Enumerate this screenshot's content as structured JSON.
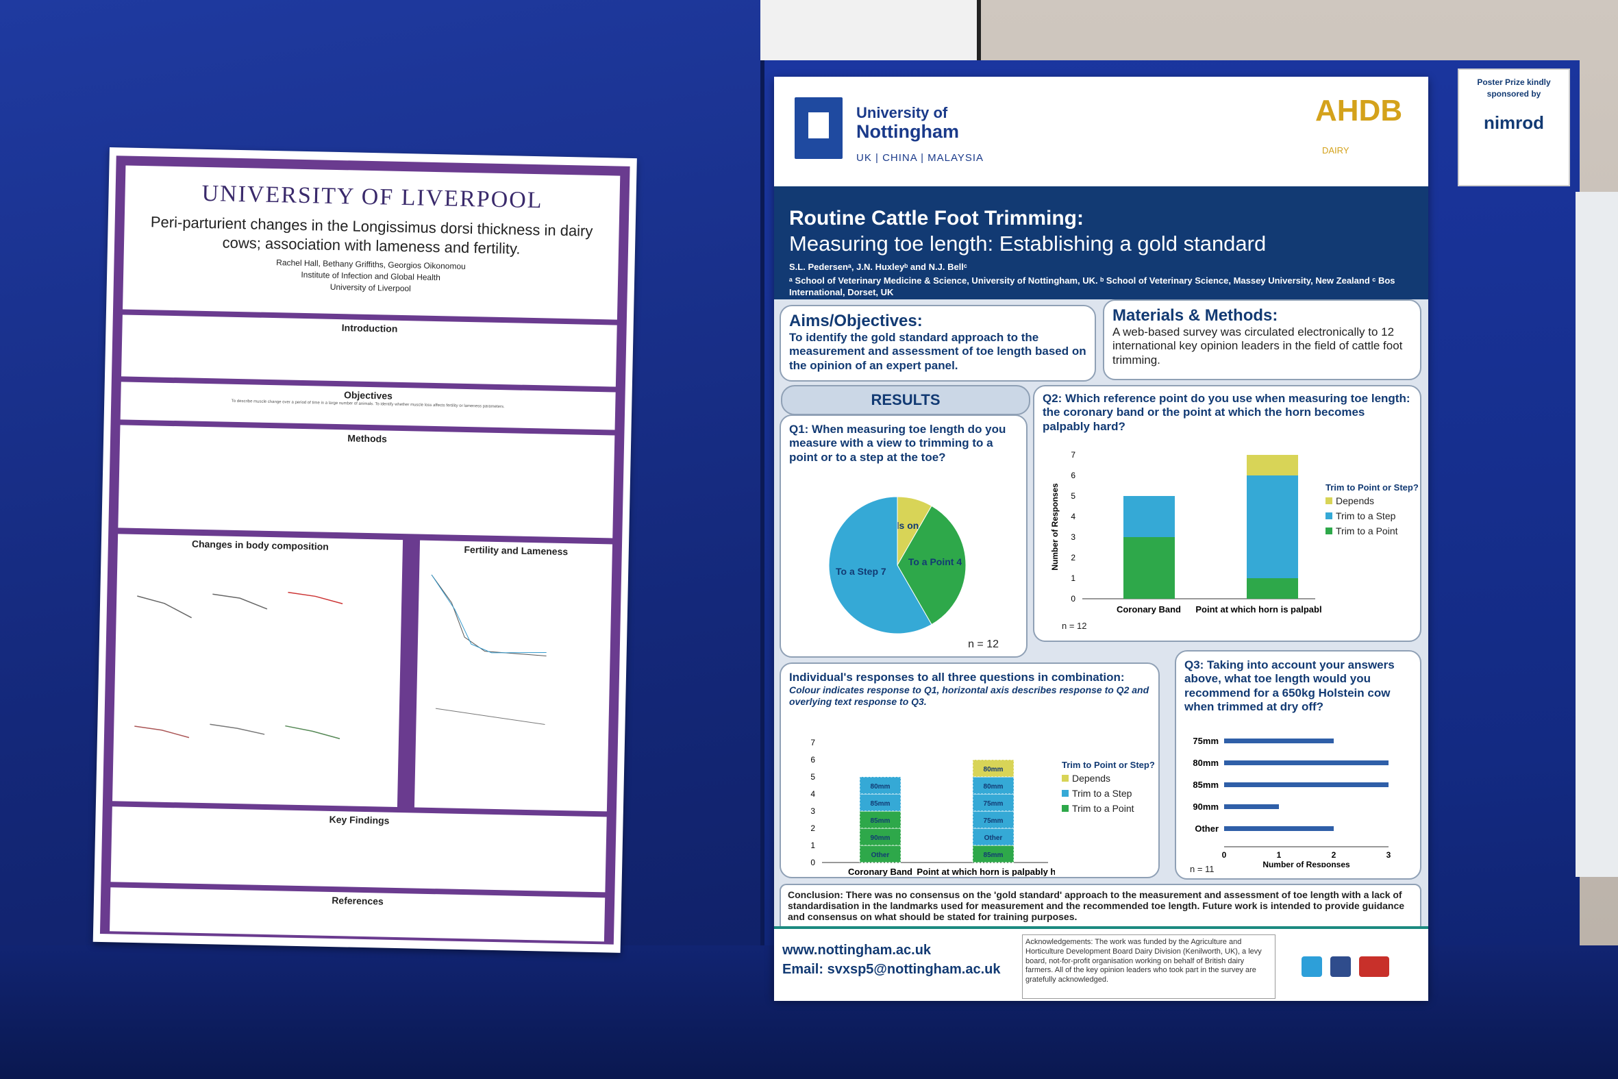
{
  "liverpool": {
    "logo": "UNIVERSITY OF LIVERPOOL",
    "title": "Peri-parturient changes in the Longissimus dorsi thickness in dairy cows; association with lameness and fertility.",
    "authors": "Rachel Hall, Bethany Griffiths, Georgios Oikonomou",
    "institute": "Institute of Infection and Global Health",
    "university": "University of Liverpool",
    "sections": {
      "introduction": "Introduction",
      "objectives": "Objectives",
      "methods": "Methods",
      "body_comp": "Changes in body composition",
      "fertility": "Fertility and Lameness",
      "key_findings": "Key Findings",
      "references": "References"
    },
    "objectives_text": "To describe muscle change over a period of time in a large number of animals. To identify whether muscle loss affects fertility or lameness parameters."
  },
  "nottingham": {
    "uni_name_1": "University of",
    "uni_name_2": "Nottingham",
    "uni_sub": "UK | CHINA | MALAYSIA",
    "ahdb": "AHDB",
    "ahdb_sub": "DAIRY",
    "title_1": "Routine Cattle Foot Trimming:",
    "title_2": "Measuring toe length: Establishing a gold standard",
    "authors": "S.L. Pedersenᵃ, J.N. Huxleyᵇ and N.J. Bellᶜ",
    "affiliations": "ᵃ School of Veterinary Medicine & Science, University of Nottingham, UK. ᵇ School of Veterinary Science, Massey University, New Zealand ᶜ Bos International, Dorset, UK",
    "aims_title": "Aims/Objectives:",
    "aims_text": "To identify the gold standard approach to the measurement and assessment of toe length based on the opinion of an expert panel.",
    "methods_title": "Materials & Methods:",
    "methods_text": "A web-based survey was circulated electronically to 12 international key opinion leaders in the field of cattle foot trimming.",
    "results": "RESULTS",
    "q1": "Q1: When measuring toe length do you measure with a view to trimming to a point or to a step at the toe?",
    "q1_n": "n = 12",
    "q2": "Q2: Which reference point do you use when measuring toe length: the coronary band or the point at which the horn becomes palpably hard?",
    "q2_n": "n = 12",
    "q2_ylabel": "Number of Responses",
    "q2_cat1": "Coronary Band",
    "q2_cat2": "Point at which horn is palpably hard",
    "legend_title": "Trim to Point or Step?",
    "legend_depends": "Depends",
    "legend_step": "Trim to a Step",
    "legend_point": "Trim to a Point",
    "combo_title": "Individual's responses to all three questions in combination:",
    "combo_sub": "Colour indicates response to Q1, horizontal axis describes response to Q2 and overlying text response to Q3.",
    "combo_cat1": "Coronary Band",
    "combo_cat2": "Point at which horn is palpably hard",
    "q3": "Q3: Taking into account your answers above, what toe length would you recommend for a 650kg Holstein cow when trimmed at dry off?",
    "q3_n": "n = 11",
    "q3_xlabel": "Number of Responses",
    "conclusion": "Conclusion: There was no consensus on the 'gold standard' approach to the measurement and assessment of toe length with a lack of standardisation in the landmarks used for measurement and the recommended toe length. Future work is intended to provide guidance and consensus on what should be stated for training purposes.",
    "web": "www.nottingham.ac.uk",
    "email": "Email: svxsp5@nottingham.ac.uk",
    "ack": "Acknowledgements: The work was funded by the Agriculture and Horticulture Development Board Dairy Division (Kenilworth, UK), a levy board, not-for-profit organisation working on behalf of British dairy farmers. All of the key opinion leaders who took part in the survey are gratefully acknowledged.",
    "colors": {
      "navy": "#123a73",
      "point": "#2ea84a",
      "step": "#35a9d6",
      "depends": "#d8d457"
    }
  },
  "sponsor": {
    "line1": "Poster Prize kindly sponsored by",
    "brand": "nimrod"
  },
  "chart_data": [
    {
      "type": "pie",
      "categories": [
        "Depends on claw",
        "To a Point",
        "To a Step"
      ],
      "values": [
        1,
        4,
        7
      ]
    },
    {
      "type": "bar",
      "categories": [
        "Coronary Band",
        "Point at which horn is palpably hard"
      ],
      "series": [
        {
          "name": "Trim to a Point",
          "values": [
            3,
            1
          ]
        },
        {
          "name": "Trim to a Step",
          "values": [
            2,
            5
          ]
        },
        {
          "name": "Depends",
          "values": [
            0,
            1
          ]
        }
      ],
      "ylabel": "Number of Responses",
      "ylim": [
        0,
        7
      ]
    },
    {
      "type": "bar",
      "categories": [
        "75mm",
        "80mm",
        "85mm",
        "90mm",
        "Other"
      ],
      "values": [
        2,
        3,
        3,
        1,
        2
      ],
      "xlabel": "Number of Responses",
      "xlim": [
        0,
        3
      ]
    }
  ]
}
